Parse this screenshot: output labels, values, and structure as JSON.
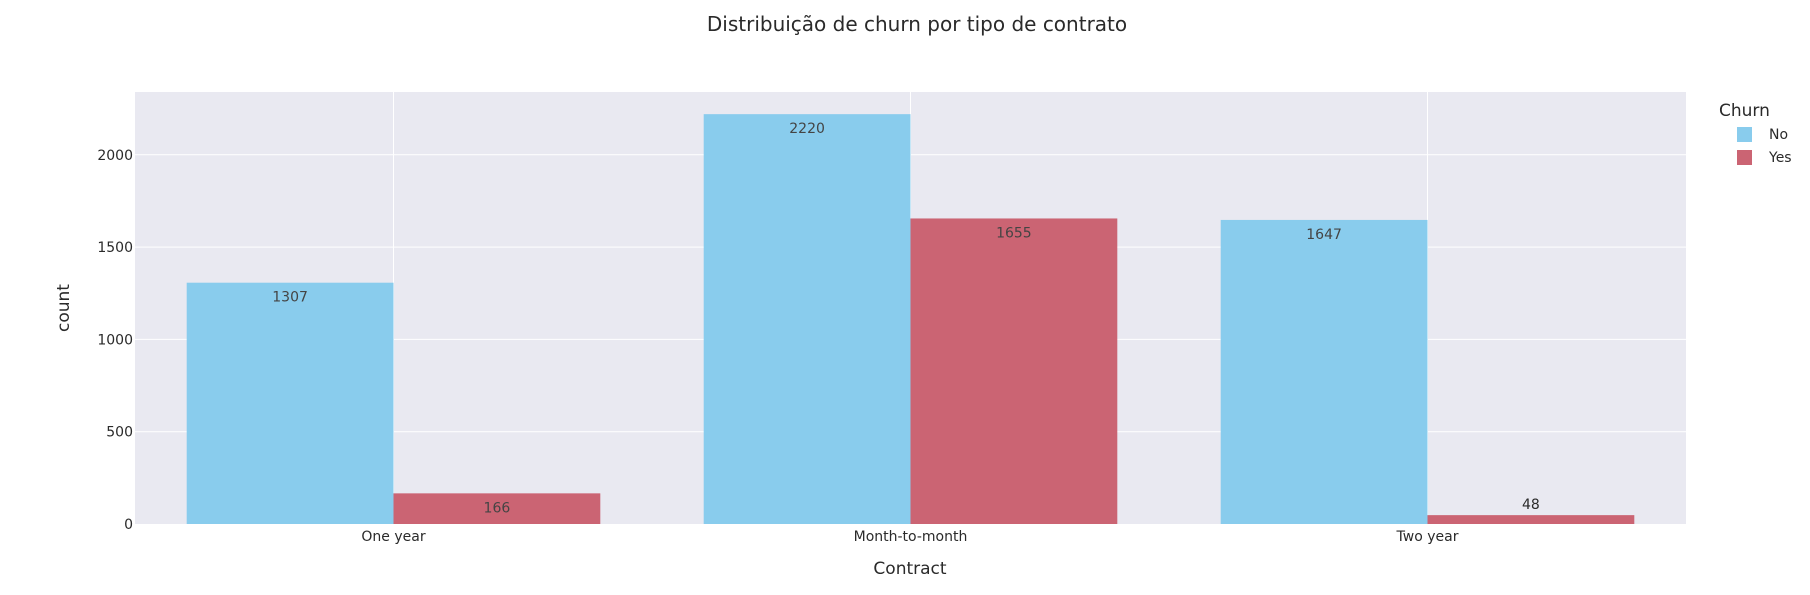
{
  "chart_data": {
    "type": "bar",
    "title": "Distribuição de churn por tipo de contrato",
    "xlabel": "Contract",
    "ylabel": "count",
    "categories": [
      "One year",
      "Month-to-month",
      "Two year"
    ],
    "series": [
      {
        "name": "No",
        "values": [
          1307,
          2220,
          1647
        ],
        "color": "#89cced"
      },
      {
        "name": "Yes",
        "values": [
          166,
          1655,
          48
        ],
        "color": "#cb6473"
      }
    ],
    "ylim": [
      0,
      2340
    ],
    "yticks": [
      0,
      500,
      1000,
      1500,
      2000
    ],
    "grid": true,
    "legend": {
      "title": "Churn",
      "placement": "top-right"
    },
    "plot_background": "#e9e9f1"
  }
}
